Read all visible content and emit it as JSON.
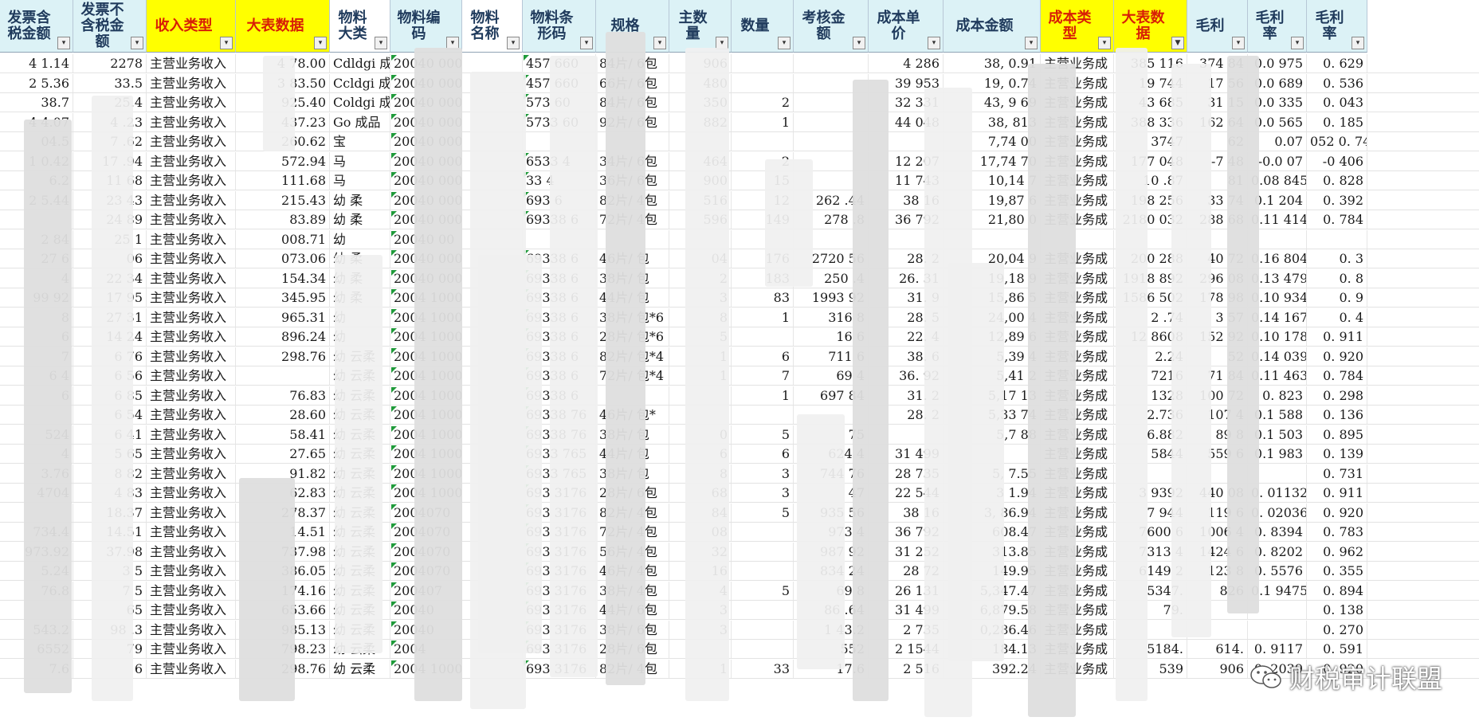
{
  "sheet": {
    "columns": [
      {
        "label": "发票含税金额",
        "style": "cyan",
        "align": "num"
      },
      {
        "label": "发票不含税金额",
        "style": "cyan",
        "align": "num"
      },
      {
        "label": "收入类型",
        "style": "yellow",
        "align": "txt"
      },
      {
        "label": "大表数据",
        "style": "yellow",
        "align": "num"
      },
      {
        "label": "物料大类",
        "style": "white",
        "align": "txt"
      },
      {
        "label": "物料编码",
        "style": "cyan",
        "align": "txt"
      },
      {
        "label": "物料名称",
        "style": "white",
        "align": "txt"
      },
      {
        "label": "物料条形码",
        "style": "cyan",
        "align": "txt"
      },
      {
        "label": "规格",
        "style": "cyan",
        "align": "txt"
      },
      {
        "label": "主数量",
        "style": "cyan",
        "align": "num"
      },
      {
        "label": "数量",
        "style": "cyan",
        "align": "num"
      },
      {
        "label": "考核金额",
        "style": "cyan",
        "align": "num"
      },
      {
        "label": "成本单价",
        "style": "cyan",
        "align": "num"
      },
      {
        "label": "成本金额",
        "style": "cyan",
        "align": "num"
      },
      {
        "label": "成本类型",
        "style": "yellow",
        "align": "txt"
      },
      {
        "label": "大表数据",
        "style": "yellow",
        "align": "num"
      },
      {
        "label": "毛利",
        "style": "cyan",
        "align": "num"
      },
      {
        "label": "毛利率",
        "style": "cyan",
        "align": "num"
      },
      {
        "label": "毛利率",
        "style": "cyan",
        "align": "num"
      }
    ],
    "filter_active_column": 15,
    "rows": [
      [
        "4 1.14",
        "2278",
        "主营业务收入",
        "4 78.00",
        "Cdldgi 成品",
        "20040 000",
        "",
        "457 660",
        "84片/ 6包",
        "906",
        "",
        "",
        "4 286",
        "38, 0.91",
        "主营业务成",
        "385 116",
        "374 84",
        "0.0 975",
        "0. 629"
      ],
      [
        "2 5.36",
        "33.5",
        "主营业务收入",
        "3 83.50",
        "Ccldgi 成品",
        "20040 000",
        "",
        "457 660",
        "66片/ 6包",
        "480",
        "",
        "",
        "39 953",
        "19, 0.74",
        "主营业务成",
        "19 744",
        "17 56",
        "0.0 689",
        "0. 536"
      ],
      [
        "38.7",
        "25.4",
        "主营业务收入",
        "925.40",
        "Coldgi 成品",
        "20040 000",
        "",
        "573 60",
        "84片/ 6包",
        "350",
        "2",
        "",
        "32 331",
        "43, 9 69",
        "主营业务成",
        "43 685",
        "31 15",
        "0.0 335",
        "0. 043"
      ],
      [
        "4 4.07",
        "4 .23",
        "主营业务收入",
        "437.23",
        "Go 成品",
        "20040 000",
        "",
        "5733 60",
        "92片/ 6包",
        "882",
        "1",
        "",
        "44 048",
        "38, 813",
        "主营业务成",
        "388 336",
        "162 64",
        "0.0 565",
        "0. 185"
      ],
      [
        "04.5",
        "7 .62",
        "主营业务收入",
        "260.62",
        "宝",
        "20040 000",
        "",
        "",
        "",
        "",
        "",
        "",
        "",
        "7,74 00",
        "主营业务成",
        "3747",
        "62",
        "0.07",
        "052 0. 740"
      ],
      [
        "1 0.42",
        "17 .94",
        "主营业务收入",
        "572.94",
        "马",
        "20040 000",
        "",
        "6533 4",
        "34片/ 6包",
        "464",
        "2",
        "",
        "12 207",
        "17,74 70",
        "主营业务成",
        "177 048",
        "-7 48",
        "-0.0 07",
        "-0 406"
      ],
      [
        "6.2",
        "11 68",
        "主营业务收入",
        "111.68",
        "马",
        "20040 000",
        "",
        "33 4",
        "36片/ 6包",
        "900",
        "15",
        "",
        "11 743",
        "10,14 7",
        "主营业务成",
        "10 .87",
        "81",
        "0.08 845",
        "0. 828"
      ],
      [
        "2 5.44",
        "23 43",
        "主营业务收入",
        "215.43",
        "幼 柔",
        "20040 000",
        "",
        "693 6",
        "82片/ 4包",
        "516",
        "12",
        "262 .44",
        "38 16",
        "19,87 6",
        "主营业务成",
        "198 256",
        "33 74",
        "0.1 204",
        "0. 392"
      ],
      [
        "",
        "24 89",
        "主营业务收入",
        "83.89",
        "幼 柔",
        "20040 000",
        "",
        "69338 6",
        "72片/ 4包",
        "596",
        "149",
        "278 .8",
        "36 792",
        "21,80 0",
        "主营业务成",
        "2180 032",
        "288 68",
        "0.11 414",
        "0. 784"
      ],
      [
        "2 84",
        "25 1",
        "主营业务收入",
        "008.71",
        "幼",
        "20040 00",
        "",
        "",
        "",
        "",
        "",
        "",
        "",
        "",
        "",
        "",
        "",
        "",
        ""
      ],
      [
        "27 6",
        "06",
        "主营业务收入",
        "073.06",
        "幼 柔",
        "20040 000",
        "",
        "69338 6",
        "46片/ 包",
        "04",
        "176",
        "2720 56",
        "28. 2",
        "20,04 9",
        "主营业务成",
        "200 288",
        "40 72",
        "0.16 804",
        "0. 3"
      ],
      [
        "4",
        "22 34",
        "主营业务收入",
        "154.34",
        "幼 柔",
        "20040 000",
        "",
        "69338 6",
        "38片/ 包",
        "2",
        "183",
        "250 .4",
        "26. 31",
        "19,18 9",
        "主营业务成",
        "1918 892",
        "296 08",
        "0.13 479",
        "0. 8"
      ],
      [
        "99 92",
        "17 95",
        "主营业务收入",
        "345.95",
        "幼 柔",
        "2004 1000",
        "",
        "69338 6",
        "44片/ 包",
        "3",
        "83",
        "1993 92",
        "31. 9",
        "15,86 5",
        "主营业务成",
        "1586 502",
        "178 98",
        "0.10 934",
        "0. 9"
      ],
      [
        "8",
        "27 31",
        "主营业务收入",
        "965.31",
        "幼",
        "2004 1000",
        "",
        "69338 6",
        "38片/ 包*6",
        "8",
        "1",
        "316 8",
        "28. 5",
        "24,00 4",
        "主营业务成",
        "2 .74",
        "3 57",
        "0.14 167",
        "0. 4"
      ],
      [
        "6",
        "14 24",
        "主营业务收入",
        "896.24",
        "幼",
        "2004 1000",
        "",
        "69338 6",
        "28片/ 包*6",
        "5",
        "",
        "16 6",
        "22. 4",
        "12,89 6",
        "主营业务成",
        "12 8608",
        "152 92",
        "0.10 178",
        "0. 911"
      ],
      [
        "7",
        "6 76",
        "主营业务收入",
        "298.76",
        "幼 云柔",
        "2004 1000",
        "",
        "69338 6",
        "82片/ 包*4",
        "1",
        "6",
        "711 6",
        "38. 6",
        "5,39 4",
        "主营业务成",
        "2.24",
        "52",
        "0.14 039",
        "0. 920"
      ],
      [
        "6 4",
        "6 56",
        "主营业务收入",
        "",
        "幼 云柔",
        "2004 1000",
        "",
        "69338 6",
        "72片/ 包*4",
        "1",
        "7",
        "69 4",
        "36. 92",
        "5,41 2",
        "主营业务成",
        "7216",
        "71 84",
        "0.11 463",
        "0. 784"
      ],
      [
        "6",
        "6 85",
        "主营业务收入",
        "76.83",
        "幼 云柔",
        "2004 1000",
        "",
        "69338 6",
        "",
        "",
        "1",
        "697 84",
        "31. 2",
        "5,17 13",
        "主营业务成",
        "1328",
        "100 72",
        "0. 823",
        "0. 298"
      ],
      [
        "",
        "6 54",
        "主营业务收入",
        "28.60",
        "幼 云柔",
        "2004 1000",
        "",
        "69338 76",
        "46片/ 包*",
        "",
        "",
        "",
        "28. 2",
        "5,33 74",
        "主营业务成",
        "2.736",
        "107 4",
        "0.1 588",
        "0. 136"
      ],
      [
        "524",
        "6 41",
        "主营业务收入",
        "58.41",
        "幼 云柔",
        "2004 1000",
        "",
        "69338 76",
        "38片/ 包",
        "0",
        "5",
        "75",
        "",
        "5,7 88",
        "主营业务成",
        "6.882",
        "89 8",
        "0.1 503",
        "0. 895"
      ],
      [
        "4",
        "5 65",
        "主营业务收入",
        "27.65",
        "幼 云柔",
        "2004 1000",
        "",
        "6933 765",
        "44片/ 包",
        "6",
        "6",
        "624 4",
        "31 499",
        "",
        "主营业务成",
        "5844",
        "559 6",
        "0.1 983",
        "0. 139"
      ],
      [
        "3.76",
        "8 82",
        "主营业务收入",
        "91.82",
        "幼 云柔",
        "2004 1000",
        "",
        "6933 765",
        "38片/ 包",
        "8",
        "3",
        "744 76",
        "28 735",
        "5, 7.55",
        "主营业务成",
        "",
        "",
        "",
        "0. 731"
      ],
      [
        "4704",
        "4 83",
        "主营业务收入",
        "62.83",
        "幼 云柔",
        "2004 1000",
        "",
        "693 3176",
        "28片/ 6包",
        "68",
        "3",
        "47",
        "22 544",
        "3 1.94",
        "主营业务成",
        "3 9392",
        "440 08",
        "0. 01132",
        "0. 911"
      ],
      [
        "",
        "18.37",
        "主营业务收入",
        "278.37",
        "幼 云柔",
        "2004070",
        "",
        "693 3176",
        "82片/ 4包",
        "84",
        "5",
        "935 56",
        "38 16",
        "3, 86.94",
        "主营业务成",
        "7 944",
        "119 6",
        "0. 02036",
        "0. 920"
      ],
      [
        "734.4",
        "14.51",
        "主营业务收入",
        "14.51",
        "幼 云柔",
        "2004070",
        "",
        "693 3176",
        "72片/ 4包",
        "08",
        "",
        "973 4",
        "36 792",
        "608.47",
        "主营业务成",
        "7600 6",
        "1006 4",
        "0. 8394",
        "0. 783"
      ],
      [
        "973.92",
        "37.98",
        "主营业务收入",
        "737.98",
        "幼 云柔",
        "2004070",
        "",
        "693 3176",
        "56片/ 4包",
        "32",
        "",
        "987 92",
        "31 252",
        "313.85",
        "主营业务成",
        "7313 4",
        "1424 6",
        "0. 8202",
        "0. 962"
      ],
      [
        "5.24",
        "3 5",
        "主营业务收入",
        "386.05",
        "幼 云柔",
        "2004070",
        "",
        "693 3176",
        "46片/ 4包",
        "16",
        "",
        "834 24",
        "28 72",
        "149.95",
        "主营业务成",
        "6149 2",
        "123 8",
        "0. 5576",
        "0. 355"
      ],
      [
        "76.8",
        "7 5",
        "主营业务收入",
        "174.16",
        "幼 云柔",
        "200407",
        "",
        "693 3176",
        "38片/ 4包",
        "4",
        "5",
        "69 8",
        "26 131",
        "5,347.47",
        "主营业务成",
        "5347.",
        "826",
        "0.1 9475",
        "0. 894"
      ],
      [
        "",
        "65",
        "主营业务收入",
        "653.66",
        "幼 云柔",
        "20040",
        "",
        "693 3176",
        "44片/ 6包",
        "3",
        "",
        "86 .64",
        "31 499",
        "6,879.58",
        "主营业务成",
        "79.",
        "",
        "",
        "0. 138"
      ],
      [
        "543.2",
        "98 .3",
        "主营业务收入",
        "985.13",
        "幼 云柔",
        "20040",
        "",
        "693 3176",
        "38片/ 6包",
        "3",
        "",
        "1 43.2",
        "2 735",
        "0,286.46",
        "主营业务成",
        "",
        "",
        "",
        "0. 270"
      ],
      [
        "6552",
        "79",
        "主营业务收入",
        "798.23",
        "幼 云柔",
        "2004",
        "",
        "693 3176",
        "28片/ 6包",
        "",
        "",
        "552",
        "2 1544",
        "184.13",
        "主营业务成",
        "5184.",
        "614.",
        "0. 9117",
        "0. 591"
      ],
      [
        "7.6",
        "6",
        "主营业务收入",
        "298.76",
        "幼 云柔",
        "2004 1000",
        "",
        "693 3176",
        "82片/ 4包",
        "1",
        "33",
        "17.6",
        "2 516",
        "392.24",
        "主营业务成",
        "539",
        "906",
        "0. 2039",
        "0. 920"
      ]
    ]
  },
  "watermark": {
    "text": "财税审计联盟"
  }
}
